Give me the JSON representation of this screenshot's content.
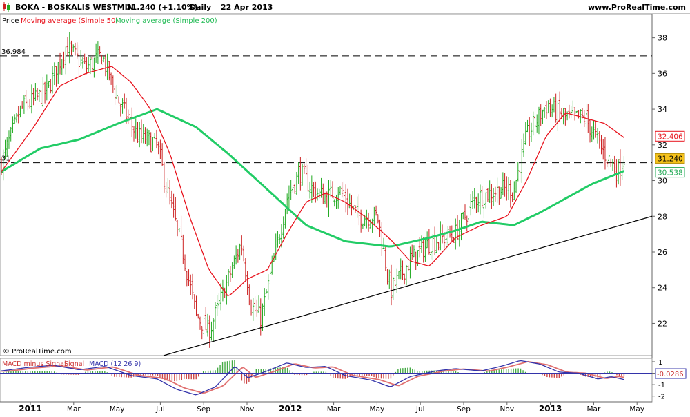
{
  "header": {
    "symbol": "BOKA - BOSKALIS WESTMIN",
    "quote": "31.240 (+1.10%)",
    "period": "Daily",
    "date": "22 Apr 2013",
    "site": "www.ProRealTime.com"
  },
  "legend": {
    "price": "Price",
    "ma50": "Moving average (Simple 50)",
    "ma200": "Moving average (Simple 200)"
  },
  "copyright": "© ProRealTime.com",
  "macd_legend": {
    "hist": "MACD minus Signal",
    "signal": "Signal",
    "macd": "MACD (12 26 9)"
  },
  "colors": {
    "price_up": "#22aa22",
    "price_down": "#cc2222",
    "ma50": "#e8141e",
    "ma200": "#22cc66",
    "macd_line": "#3333aa",
    "signal_line": "#e07070",
    "hist": "#44aa44",
    "trendline": "#000000"
  },
  "chart_data": [
    {
      "type": "ohlc",
      "name": "price",
      "y_ticks": [
        "22",
        "24",
        "26",
        "28",
        "30",
        "32",
        "34",
        "36",
        "38"
      ],
      "ylim": [
        20.2,
        39.3
      ],
      "x_ticks": [
        "2011",
        "Mar",
        "May",
        "Jul",
        "Sep",
        "Nov",
        "2012",
        "Mar",
        "May",
        "Jul",
        "Sep",
        "Nov",
        "2013",
        "Mar",
        "May"
      ],
      "x_ticks_bold": [
        "2011",
        "2012",
        "2013"
      ],
      "horizontal_lines": [
        {
          "label": "36.984",
          "value": 36.984
        },
        {
          "label": "31",
          "value": 31.0
        }
      ],
      "price_waypoints": [
        {
          "t": 0,
          "v": 31.0
        },
        {
          "t": 0.03,
          "v": 34.0
        },
        {
          "t": 0.07,
          "v": 35.0
        },
        {
          "t": 0.1,
          "v": 37.5
        },
        {
          "t": 0.13,
          "v": 36.3
        },
        {
          "t": 0.155,
          "v": 37.0
        },
        {
          "t": 0.18,
          "v": 34.5
        },
        {
          "t": 0.21,
          "v": 32.5
        },
        {
          "t": 0.24,
          "v": 32.0
        },
        {
          "t": 0.255,
          "v": 29.5
        },
        {
          "t": 0.28,
          "v": 26.0
        },
        {
          "t": 0.3,
          "v": 22.5
        },
        {
          "t": 0.32,
          "v": 21.5
        },
        {
          "t": 0.34,
          "v": 23.5
        },
        {
          "t": 0.37,
          "v": 26.5
        },
        {
          "t": 0.385,
          "v": 23.0
        },
        {
          "t": 0.4,
          "v": 22.3
        },
        {
          "t": 0.42,
          "v": 25.5
        },
        {
          "t": 0.44,
          "v": 29.0
        },
        {
          "t": 0.46,
          "v": 30.5
        },
        {
          "t": 0.48,
          "v": 29.5
        },
        {
          "t": 0.5,
          "v": 29.0
        },
        {
          "t": 0.52,
          "v": 29.5
        },
        {
          "t": 0.55,
          "v": 28.0
        },
        {
          "t": 0.58,
          "v": 28.0
        },
        {
          "t": 0.6,
          "v": 23.8
        },
        {
          "t": 0.63,
          "v": 25.5
        },
        {
          "t": 0.66,
          "v": 26.5
        },
        {
          "t": 0.7,
          "v": 27.0
        },
        {
          "t": 0.73,
          "v": 29.0
        },
        {
          "t": 0.77,
          "v": 29.5
        },
        {
          "t": 0.79,
          "v": 29.5
        },
        {
          "t": 0.81,
          "v": 32.5
        },
        {
          "t": 0.84,
          "v": 34.2
        },
        {
          "t": 0.87,
          "v": 33.5
        },
        {
          "t": 0.9,
          "v": 33.5
        },
        {
          "t": 0.93,
          "v": 31.5
        },
        {
          "t": 0.95,
          "v": 30.5
        },
        {
          "t": 0.96,
          "v": 31.24
        }
      ],
      "ma50_waypoints": [
        {
          "t": 0,
          "v": 30.5
        },
        {
          "t": 0.05,
          "v": 33.0
        },
        {
          "t": 0.09,
          "v": 35.3
        },
        {
          "t": 0.13,
          "v": 36.0
        },
        {
          "t": 0.17,
          "v": 36.4
        },
        {
          "t": 0.2,
          "v": 35.5
        },
        {
          "t": 0.23,
          "v": 34.0
        },
        {
          "t": 0.26,
          "v": 31.5
        },
        {
          "t": 0.29,
          "v": 28.0
        },
        {
          "t": 0.32,
          "v": 25.0
        },
        {
          "t": 0.35,
          "v": 23.5
        },
        {
          "t": 0.38,
          "v": 24.5
        },
        {
          "t": 0.41,
          "v": 25.0
        },
        {
          "t": 0.44,
          "v": 27.0
        },
        {
          "t": 0.47,
          "v": 28.8
        },
        {
          "t": 0.5,
          "v": 29.3
        },
        {
          "t": 0.53,
          "v": 28.8
        },
        {
          "t": 0.56,
          "v": 28.0
        },
        {
          "t": 0.6,
          "v": 26.7
        },
        {
          "t": 0.63,
          "v": 25.5
        },
        {
          "t": 0.66,
          "v": 25.2
        },
        {
          "t": 0.7,
          "v": 26.8
        },
        {
          "t": 0.74,
          "v": 27.5
        },
        {
          "t": 0.78,
          "v": 28.0
        },
        {
          "t": 0.81,
          "v": 30.0
        },
        {
          "t": 0.84,
          "v": 32.5
        },
        {
          "t": 0.87,
          "v": 33.8
        },
        {
          "t": 0.9,
          "v": 33.5
        },
        {
          "t": 0.93,
          "v": 33.2
        },
        {
          "t": 0.96,
          "v": 32.406
        }
      ],
      "ma200_waypoints": [
        {
          "t": 0,
          "v": 30.5
        },
        {
          "t": 0.06,
          "v": 31.8
        },
        {
          "t": 0.12,
          "v": 32.3
        },
        {
          "t": 0.18,
          "v": 33.2
        },
        {
          "t": 0.24,
          "v": 34.0
        },
        {
          "t": 0.3,
          "v": 33.0
        },
        {
          "t": 0.35,
          "v": 31.5
        },
        {
          "t": 0.41,
          "v": 29.5
        },
        {
          "t": 0.47,
          "v": 27.5
        },
        {
          "t": 0.53,
          "v": 26.6
        },
        {
          "t": 0.6,
          "v": 26.3
        },
        {
          "t": 0.66,
          "v": 26.8
        },
        {
          "t": 0.7,
          "v": 27.2
        },
        {
          "t": 0.74,
          "v": 27.7
        },
        {
          "t": 0.79,
          "v": 27.5
        },
        {
          "t": 0.83,
          "v": 28.2
        },
        {
          "t": 0.87,
          "v": 29.0
        },
        {
          "t": 0.91,
          "v": 29.8
        },
        {
          "t": 0.96,
          "v": 30.538
        }
      ],
      "trendline": {
        "from": {
          "t": 0.25,
          "v": 20.2
        },
        "to": {
          "t": 1.0,
          "v": 28.0
        }
      },
      "last_labels": [
        {
          "series": "ma50",
          "text": "32.406",
          "value": 32.406,
          "bg": "#ffffff",
          "fg": "#e8141e"
        },
        {
          "series": "price",
          "text": "31.240",
          "value": 31.24,
          "bg": "#f5c21b",
          "fg": "#000000"
        },
        {
          "series": "ma200",
          "text": "30.538",
          "value": 30.538,
          "bg": "#ffffff",
          "fg": "#22aa55"
        }
      ]
    },
    {
      "type": "macd",
      "name": "MACD (12 26 9)",
      "y_ticks": [
        "1",
        "0",
        "-1",
        "-2"
      ],
      "ylim": [
        -2.5,
        1.3
      ],
      "last_value_label": "-0.0286",
      "last_value": -0.0286,
      "macd_waypoints": [
        {
          "t": 0,
          "v": 0.2
        },
        {
          "t": 0.04,
          "v": 0.5
        },
        {
          "t": 0.08,
          "v": 0.7
        },
        {
          "t": 0.12,
          "v": 0.3
        },
        {
          "t": 0.16,
          "v": 0.6
        },
        {
          "t": 0.2,
          "v": -0.2
        },
        {
          "t": 0.24,
          "v": -0.5
        },
        {
          "t": 0.27,
          "v": -1.4
        },
        {
          "t": 0.3,
          "v": -1.9
        },
        {
          "t": 0.33,
          "v": -1.2
        },
        {
          "t": 0.36,
          "v": 0.6
        },
        {
          "t": 0.38,
          "v": -0.4
        },
        {
          "t": 0.41,
          "v": 0.2
        },
        {
          "t": 0.44,
          "v": 0.9
        },
        {
          "t": 0.47,
          "v": 0.5
        },
        {
          "t": 0.5,
          "v": 0.6
        },
        {
          "t": 0.53,
          "v": -0.2
        },
        {
          "t": 0.57,
          "v": -0.6
        },
        {
          "t": 0.6,
          "v": -1.2
        },
        {
          "t": 0.63,
          "v": -0.3
        },
        {
          "t": 0.67,
          "v": 0.2
        },
        {
          "t": 0.7,
          "v": 0.4
        },
        {
          "t": 0.74,
          "v": 0.2
        },
        {
          "t": 0.77,
          "v": 0.6
        },
        {
          "t": 0.8,
          "v": 1.1
        },
        {
          "t": 0.83,
          "v": 0.8
        },
        {
          "t": 0.86,
          "v": 0.1
        },
        {
          "t": 0.89,
          "v": 0.0
        },
        {
          "t": 0.92,
          "v": -0.5
        },
        {
          "t": 0.94,
          "v": -0.3
        },
        {
          "t": 0.96,
          "v": -0.55
        }
      ]
    }
  ]
}
